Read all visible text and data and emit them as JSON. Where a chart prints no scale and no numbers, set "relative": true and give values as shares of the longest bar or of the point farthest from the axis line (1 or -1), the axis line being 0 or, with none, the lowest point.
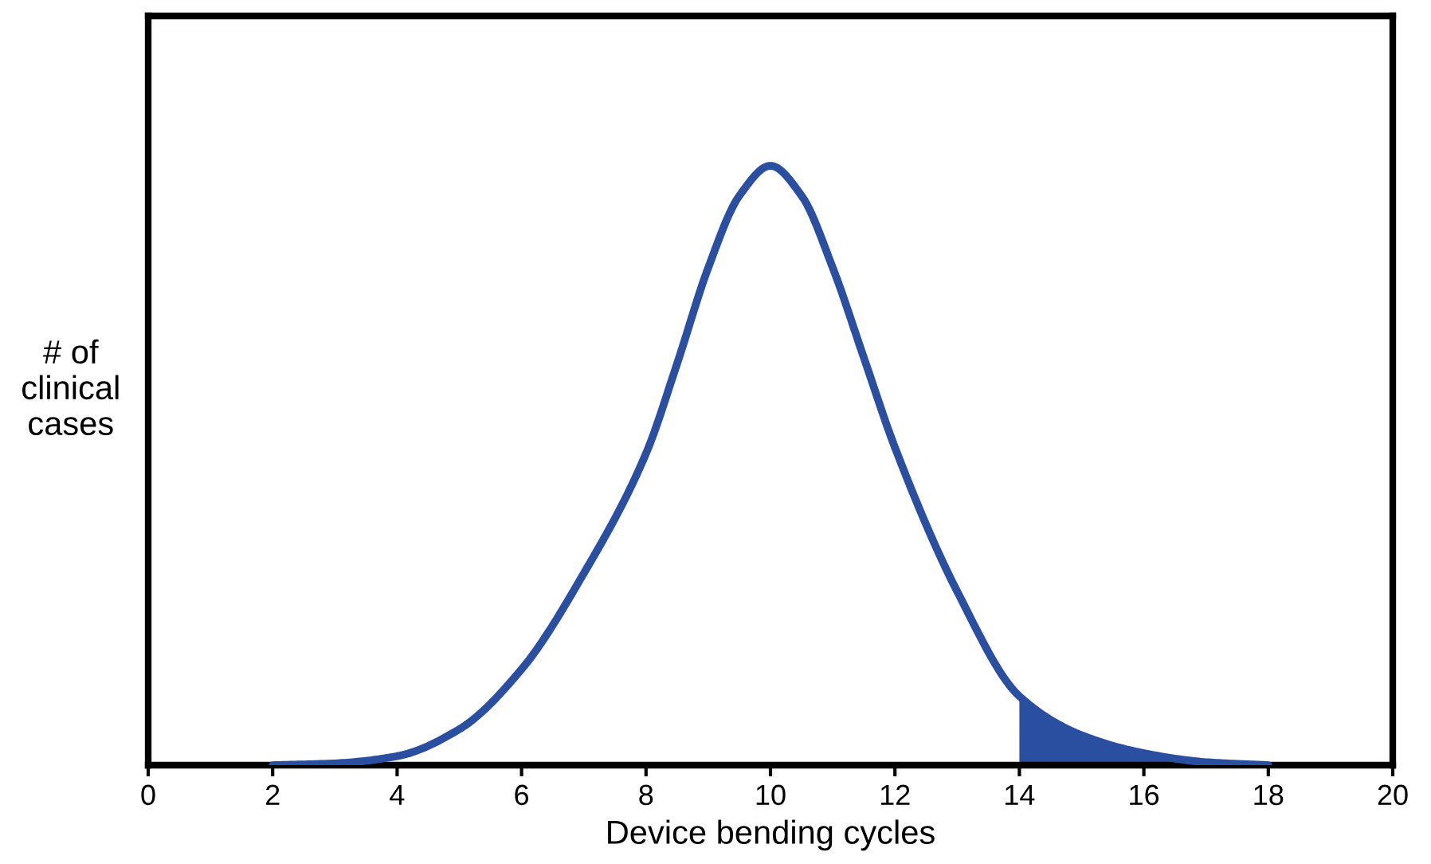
{
  "chart_data": {
    "type": "line",
    "relative": true,
    "xlabel": "Device bending cycles",
    "ylabel": "# of\nclinical\ncases",
    "xlim": [
      0,
      20
    ],
    "xticks": [
      0,
      2,
      4,
      6,
      8,
      10,
      12,
      14,
      16,
      18,
      20
    ],
    "grid": false,
    "legend": false,
    "tick_labels": "x",
    "series": [
      {
        "color": "#2a4ea0",
        "x": [
          2,
          3,
          4,
          5,
          6,
          7,
          8,
          8.5,
          9,
          9.5,
          10,
          10.5,
          11,
          11.5,
          12,
          13,
          14,
          15,
          16,
          17,
          18
        ],
        "values": [
          0.0,
          0.003,
          0.015,
          0.06,
          0.16,
          0.32,
          0.52,
          0.67,
          0.83,
          0.95,
          1.0,
          0.95,
          0.83,
          0.68,
          0.53,
          0.29,
          0.115,
          0.05,
          0.02,
          0.005,
          0.0
        ]
      },
      {
        "type": "area",
        "color": "#2a4ea0",
        "x": [
          14,
          15,
          16,
          17,
          18
        ],
        "values": [
          0.115,
          0.05,
          0.02,
          0.005,
          0.0
        ]
      }
    ]
  }
}
